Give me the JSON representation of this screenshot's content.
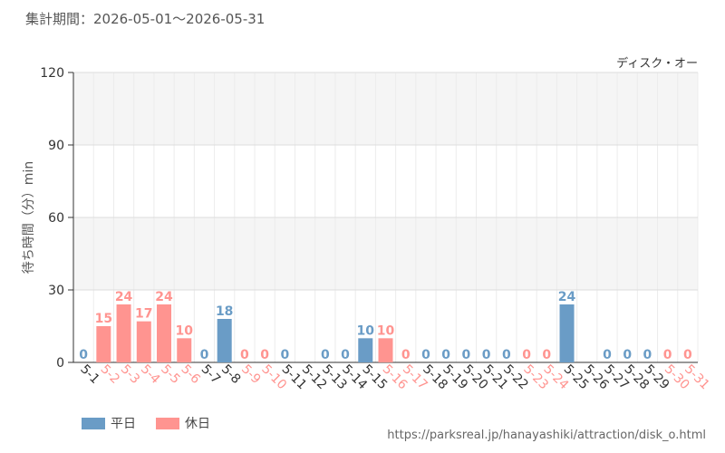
{
  "header": {
    "period": "集計期間：2026-05-01～2026-05-31"
  },
  "footer": {
    "source": "https://parksreal.jp/hanayashiki/attraction/disk_o.html"
  },
  "legend": {
    "weekday_label": "平日",
    "holiday_label": "休日"
  },
  "colors": {
    "weekday": "#6a9cc6",
    "holiday": "#ff9490",
    "grid": "#dddddd",
    "band": "#f5f5f5",
    "axis": "#333333"
  },
  "chart_data": {
    "type": "bar",
    "title": "ディスク・オー",
    "ylabel": "待ち時間（分）min",
    "xlabel": "",
    "ylim": [
      0,
      120
    ],
    "yticks": [
      0,
      30,
      60,
      90,
      120
    ],
    "grid": true,
    "categories": [
      "5-1",
      "5-2",
      "5-3",
      "5-4",
      "5-5",
      "5-6",
      "5-7",
      "5-8",
      "5-9",
      "5-10",
      "5-11",
      "5-12",
      "5-13",
      "5-14",
      "5-15",
      "5-16",
      "5-17",
      "5-18",
      "5-19",
      "5-20",
      "5-21",
      "5-22",
      "5-23",
      "5-24",
      "5-25",
      "5-26",
      "5-27",
      "5-28",
      "5-29",
      "5-30",
      "5-31"
    ],
    "values": [
      0,
      15,
      24,
      17,
      24,
      10,
      0,
      18,
      0,
      0,
      0,
      null,
      0,
      0,
      10,
      10,
      0,
      0,
      0,
      0,
      0,
      0,
      0,
      0,
      24,
      null,
      0,
      0,
      0,
      0,
      0
    ],
    "day_type": [
      "weekday",
      "holiday",
      "holiday",
      "holiday",
      "holiday",
      "holiday",
      "weekday",
      "weekday",
      "holiday",
      "holiday",
      "weekday",
      "weekday",
      "weekday",
      "weekday",
      "weekday",
      "holiday",
      "holiday",
      "weekday",
      "weekday",
      "weekday",
      "weekday",
      "weekday",
      "holiday",
      "holiday",
      "weekday",
      "weekday",
      "weekday",
      "weekday",
      "weekday",
      "holiday",
      "holiday"
    ],
    "series": [
      {
        "name": "平日",
        "key": "weekday"
      },
      {
        "name": "休日",
        "key": "holiday"
      }
    ]
  }
}
